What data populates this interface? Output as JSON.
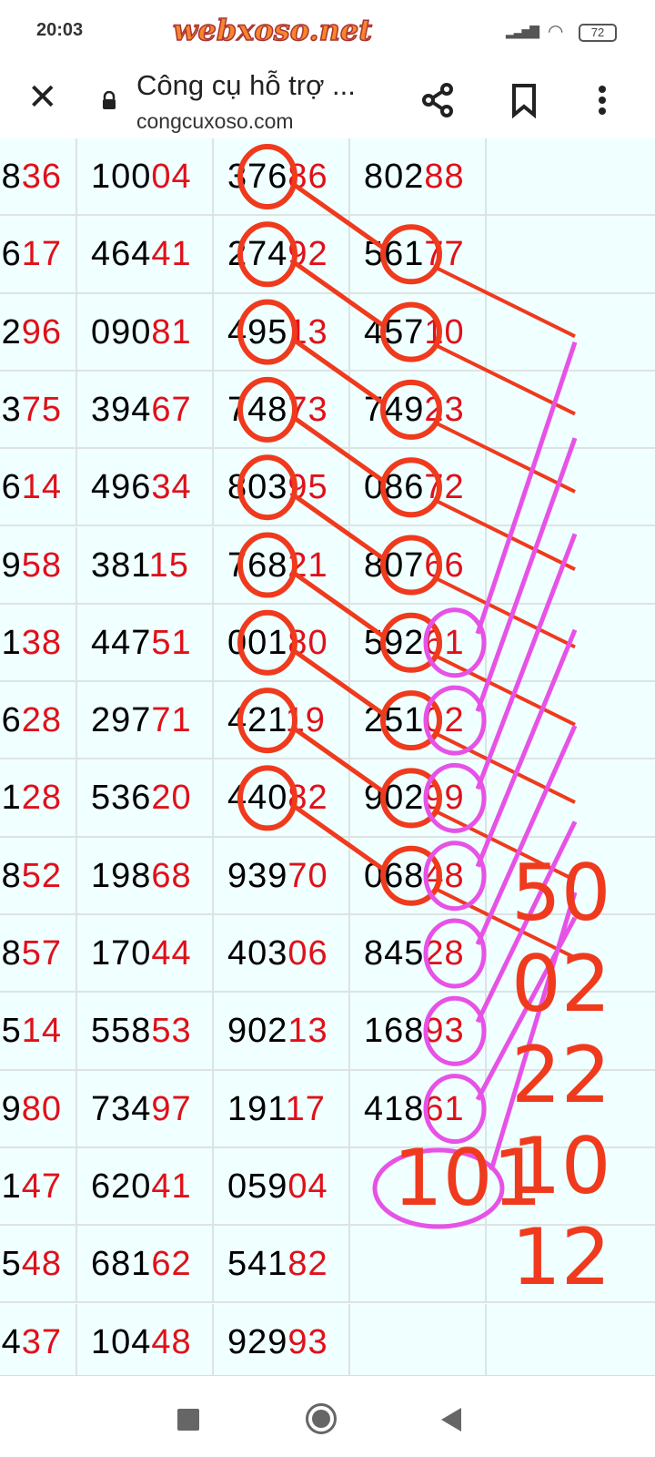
{
  "status_bar": {
    "time": "20:03",
    "battery": "72",
    "signal_icon": "signal-icon",
    "wifi_icon": "wifi-icon"
  },
  "watermark": "webxoso.net",
  "browser": {
    "title": "Công cụ hỗ trợ ...",
    "url": "congcuxoso.com",
    "close_icon": "close-icon",
    "lock_icon": "lock-icon",
    "share_icon": "share-icon",
    "bookmark_icon": "bookmark-icon",
    "menu_icon": "more-vert-icon"
  },
  "colors": {
    "highlight": "#e0101a",
    "annotation_red": "#ef3a1d",
    "annotation_pink": "#e752e6",
    "table_bg": "#f0ffff"
  },
  "table": {
    "rows": [
      [
        [
          "8",
          "36"
        ],
        [
          "100",
          "04"
        ],
        [
          "376",
          "86"
        ],
        [
          "802",
          "88"
        ]
      ],
      [
        [
          "6",
          "17"
        ],
        [
          "464",
          "41"
        ],
        [
          "274",
          "92"
        ],
        [
          "561",
          "77"
        ]
      ],
      [
        [
          "2",
          "96"
        ],
        [
          "090",
          "81"
        ],
        [
          "495",
          "13"
        ],
        [
          "457",
          "10"
        ]
      ],
      [
        [
          "3",
          "75"
        ],
        [
          "394",
          "67"
        ],
        [
          "748",
          "73"
        ],
        [
          "749",
          "23"
        ]
      ],
      [
        [
          "6",
          "14"
        ],
        [
          "496",
          "34"
        ],
        [
          "803",
          "95"
        ],
        [
          "086",
          "72"
        ]
      ],
      [
        [
          "9",
          "58"
        ],
        [
          "381",
          "15"
        ],
        [
          "768",
          "21"
        ],
        [
          "807",
          "66"
        ]
      ],
      [
        [
          "1",
          "38"
        ],
        [
          "447",
          "51"
        ],
        [
          "001",
          "80"
        ],
        [
          "592",
          "61"
        ]
      ],
      [
        [
          "6",
          "28"
        ],
        [
          "297",
          "71"
        ],
        [
          "421",
          "19"
        ],
        [
          "251",
          "02"
        ]
      ],
      [
        [
          "1",
          "28"
        ],
        [
          "536",
          "20"
        ],
        [
          "440",
          "82"
        ],
        [
          "902",
          "99"
        ]
      ],
      [
        [
          "8",
          "52"
        ],
        [
          "198",
          "68"
        ],
        [
          "939",
          "70"
        ],
        [
          "068",
          "48"
        ]
      ],
      [
        [
          "8",
          "57"
        ],
        [
          "170",
          "44"
        ],
        [
          "403",
          "06"
        ],
        [
          "845",
          "28"
        ]
      ],
      [
        [
          "5",
          "14"
        ],
        [
          "558",
          "53"
        ],
        [
          "902",
          "13"
        ],
        [
          "168",
          "93"
        ]
      ],
      [
        [
          "9",
          "80"
        ],
        [
          "734",
          "97"
        ],
        [
          "191",
          "17"
        ],
        [
          "418",
          "61"
        ]
      ],
      [
        [
          "1",
          "47"
        ],
        [
          "620",
          "41"
        ],
        [
          "059",
          "04"
        ],
        [
          "",
          ""
        ]
      ],
      [
        [
          "5",
          "48"
        ],
        [
          "681",
          "62"
        ],
        [
          "541",
          "82"
        ],
        [
          "",
          ""
        ]
      ],
      [
        [
          "4",
          "37"
        ],
        [
          "104",
          "48"
        ],
        [
          "929",
          "93"
        ],
        [
          "",
          ""
        ]
      ]
    ]
  },
  "annotations": {
    "handwritten": [
      "50",
      "02",
      "22",
      "10",
      "12",
      "101"
    ]
  },
  "nav_bar": {
    "recents_icon": "square-icon",
    "home_icon": "circle-icon",
    "back_icon": "triangle-back-icon"
  }
}
